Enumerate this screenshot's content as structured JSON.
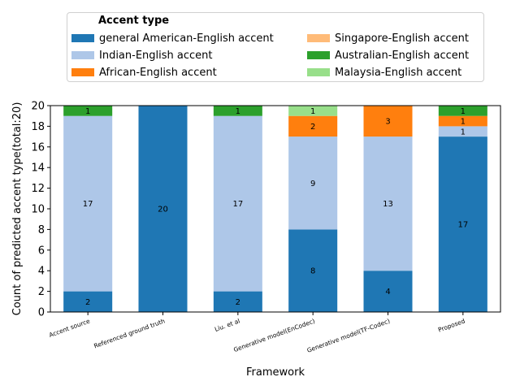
{
  "chart_data": {
    "type": "bar",
    "stacked": true,
    "categories": [
      "Accent source",
      "Referenced ground truth",
      "Liu. et al",
      "Generative model(EnCodec)",
      "Generative model(TF-Codec)",
      "Proposed"
    ],
    "series": [
      {
        "name": "general American-English accent",
        "color": "#1f77b4",
        "label_color": "#000000",
        "values": [
          2,
          20,
          2,
          8,
          4,
          17
        ]
      },
      {
        "name": "Indian-English accent",
        "color": "#aec7e8",
        "label_color": "#000000",
        "values": [
          17,
          0,
          17,
          9,
          13,
          1
        ]
      },
      {
        "name": "African-English accent",
        "color": "#ff7f0e",
        "label_color": "#000000",
        "values": [
          0,
          0,
          0,
          2,
          3,
          1
        ]
      },
      {
        "name": "Singapore-English accent",
        "color": "#ffbb78",
        "label_color": "#000000",
        "values": [
          0,
          0,
          0,
          0,
          0,
          0
        ]
      },
      {
        "name": "Australian-English accent",
        "color": "#2ca02c",
        "label_color": "#000000",
        "values": [
          1,
          0,
          1,
          0,
          0,
          1
        ]
      },
      {
        "name": "Malaysia-English accent",
        "color": "#98df8a",
        "label_color": "#000000",
        "values": [
          0,
          0,
          0,
          1,
          0,
          0
        ]
      }
    ],
    "xlabel": "Framework",
    "ylabel": "Count of predicted accent type(total:20)",
    "ylim": [
      0,
      20
    ],
    "yticks": [
      0,
      2,
      4,
      6,
      8,
      10,
      12,
      14,
      16,
      18,
      20
    ],
    "legend_title": "Accent type",
    "legend_position": "top-center",
    "grid": false
  }
}
